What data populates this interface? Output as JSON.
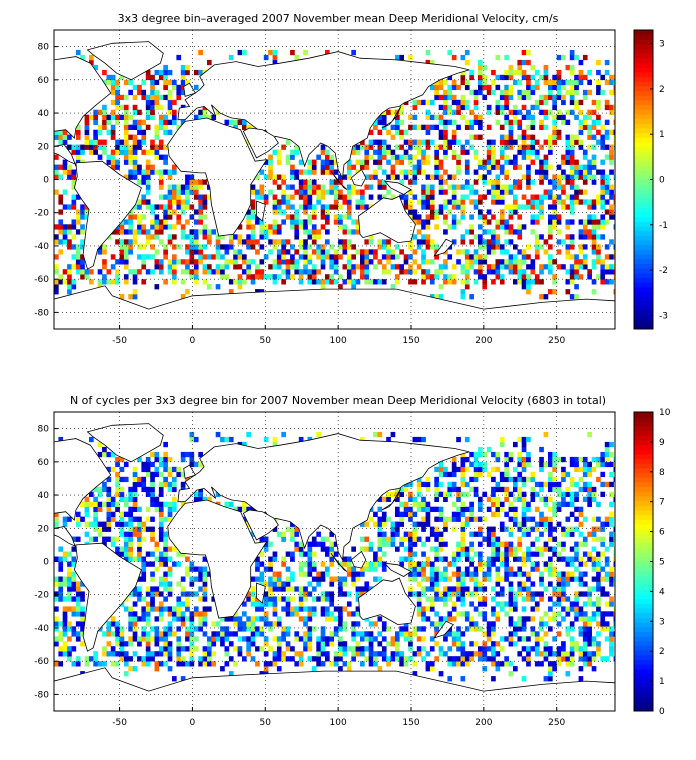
{
  "panels": [
    {
      "title": "3x3 degree bin–averaged 2007 November mean Deep Meridional Velocity, cm/s",
      "xlim": [
        -95,
        290
      ],
      "ylim": [
        -90,
        90
      ],
      "x_ticks": [
        "-50",
        "0",
        "50",
        "100",
        "150",
        "200",
        "250"
      ],
      "y_ticks": [
        "80",
        "60",
        "40",
        "20",
        "0",
        "-20",
        "-40",
        "-60",
        "-80"
      ],
      "colorbar": {
        "min": -3.3,
        "max": 3.3,
        "ticks": [
          "3",
          "2",
          "1",
          "0",
          "-1",
          "-2",
          "-3"
        ]
      },
      "seed": 11,
      "field": "velocity"
    },
    {
      "title": "N of cycles per 3x3 degree bin for 2007 November mean Deep Meridional Velocity (6803 in total)",
      "xlim": [
        -95,
        290
      ],
      "ylim": [
        -90,
        90
      ],
      "x_ticks": [
        "-50",
        "0",
        "50",
        "100",
        "150",
        "200",
        "250"
      ],
      "y_ticks": [
        "80",
        "60",
        "40",
        "20",
        "0",
        "-20",
        "-40",
        "-60",
        "-80"
      ],
      "colorbar": {
        "min": 0,
        "max": 10,
        "ticks": [
          "10",
          "9",
          "8",
          "7",
          "6",
          "5",
          "4",
          "3",
          "2",
          "1",
          "0"
        ]
      },
      "seed": 29,
      "field": "count"
    }
  ]
}
